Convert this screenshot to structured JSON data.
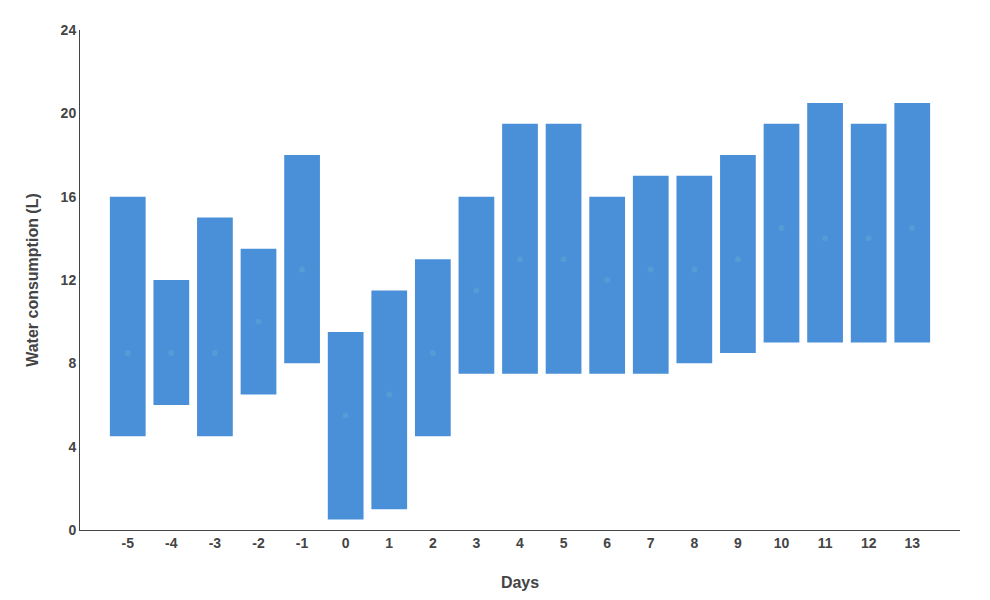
{
  "chart_data": {
    "type": "bar",
    "xlabel": "Days",
    "ylabel": "Water consumption (L)",
    "categories": [
      -5,
      -4,
      -3,
      -2,
      -1,
      0,
      1,
      2,
      3,
      4,
      5,
      6,
      7,
      8,
      9,
      10,
      11,
      12,
      13
    ],
    "series": [
      {
        "type": "bar",
        "color": "#4A90D9",
        "low": [
          4.5,
          6.0,
          4.5,
          6.5,
          8.0,
          0.5,
          1.0,
          4.5,
          7.5,
          7.5,
          7.5,
          7.5,
          7.5,
          8.0,
          8.5,
          9.0,
          9.0,
          9.0,
          9.0
        ],
        "high": [
          16.0,
          12.0,
          15.0,
          13.5,
          18.0,
          9.5,
          11.5,
          13.0,
          16.0,
          19.5,
          19.5,
          16.0,
          17.0,
          17.0,
          18.0,
          19.5,
          20.5,
          19.5,
          20.5
        ]
      },
      {
        "type": "scatter",
        "marker": "circle",
        "color": "#5a9fd4",
        "values": [
          8.5,
          8.5,
          8.5,
          10.0,
          12.5,
          5.5,
          6.5,
          8.5,
          11.5,
          13.0,
          13.0,
          12.0,
          12.5,
          12.5,
          13.0,
          14.5,
          14.0,
          14.0,
          14.5
        ]
      }
    ],
    "ylim": [
      0,
      24
    ],
    "yticks": [
      0,
      4,
      8,
      12,
      16,
      20,
      24
    ],
    "grid": false
  }
}
